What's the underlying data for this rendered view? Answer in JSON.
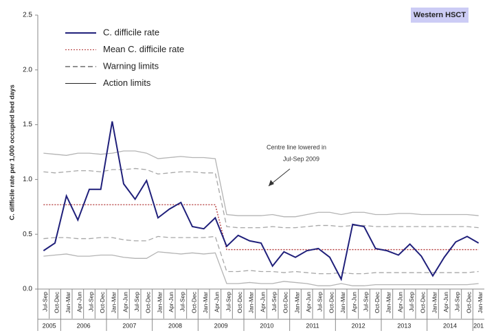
{
  "chart_data": {
    "type": "line",
    "badge": "Western HSCT",
    "ylabel": "C. difficile rate per 1,000 occupied bed days",
    "annotation": [
      "Centre line lowered in",
      "Jul-Sep 2009"
    ],
    "categories": [
      "Jul-Sep",
      "Oct-Dec",
      "Jan-Mar",
      "Apr-Jun",
      "Jul-Sep",
      "Oct-Dec",
      "Jan-Mar",
      "Apr-Jun",
      "Jul-Sep",
      "Oct-Dec",
      "Jan-Mar",
      "Apr-Jun",
      "Jul-Sep",
      "Oct-Dec",
      "Jan-Mar",
      "Apr-Jun",
      "Jul-Sep",
      "Oct-Dec",
      "Jan-Mar",
      "Apr-Jun",
      "Jul-Sep",
      "Oct-Dec",
      "Jan-Mar",
      "Apr-Jun",
      "Jul-Sep",
      "Oct-Dec",
      "Jan-Mar",
      "Apr-Jun",
      "Jul-Sep",
      "Oct-Dec",
      "Jan-Mar",
      "Apr-Jun",
      "Jul-Sep",
      "Oct-Dec",
      "Jan-Mar",
      "Apr-Jun",
      "Jul-Sep",
      "Oct-Dec",
      "Jan-Mar"
    ],
    "years": [
      "2005",
      "2005",
      "2006",
      "2006",
      "2006",
      "2006",
      "2007",
      "2007",
      "2007",
      "2007",
      "2008",
      "2008",
      "2008",
      "2008",
      "2009",
      "2009",
      "2009",
      "2009",
      "2010",
      "2010",
      "2010",
      "2010",
      "2011",
      "2011",
      "2011",
      "2011",
      "2012",
      "2012",
      "2012",
      "2012",
      "2013",
      "2013",
      "2013",
      "2013",
      "2014",
      "2014",
      "2014",
      "2014",
      "201"
    ],
    "ylim": [
      0,
      2.5
    ],
    "yticks": [
      {
        "value": 0,
        "label": "0.0"
      },
      {
        "value": 0.5,
        "label": "0.5"
      },
      {
        "value": 1,
        "label": "1.0"
      },
      {
        "value": 1.5,
        "label": "1.5"
      },
      {
        "value": 2,
        "label": "2.0"
      },
      {
        "value": 2.5,
        "label": "2.5"
      }
    ],
    "series": [
      {
        "name": "C. difficile rate",
        "color": "#1f1f7a",
        "style": "solid",
        "values": [
          0.35,
          0.42,
          0.85,
          0.63,
          0.91,
          0.91,
          1.53,
          0.96,
          0.82,
          0.99,
          0.65,
          0.73,
          0.79,
          0.57,
          0.55,
          0.65,
          0.39,
          0.49,
          0.44,
          0.42,
          0.21,
          0.34,
          0.29,
          0.35,
          0.37,
          0.29,
          0.09,
          0.59,
          0.57,
          0.37,
          0.35,
          0.31,
          0.41,
          0.3,
          0.12,
          0.29,
          0.43,
          0.48,
          0.42
        ]
      },
      {
        "name": "Mean C. difficile rate",
        "color": "#b03030",
        "style": "dotted",
        "values": [
          0.77,
          0.77,
          0.77,
          0.77,
          0.77,
          0.77,
          0.77,
          0.77,
          0.77,
          0.77,
          0.77,
          0.77,
          0.77,
          0.77,
          0.77,
          0.77,
          0.36,
          0.36,
          0.36,
          0.36,
          0.36,
          0.36,
          0.36,
          0.36,
          0.36,
          0.36,
          0.36,
          0.36,
          0.36,
          0.36,
          0.36,
          0.36,
          0.36,
          0.36,
          0.36,
          0.36,
          0.36,
          0.36,
          0.36
        ]
      },
      {
        "name": "Warning limits",
        "color": "#a6a6a6",
        "style": "dashed",
        "values": [
          1.07,
          1.06,
          1.07,
          1.08,
          1.08,
          1.07,
          1.09,
          1.09,
          1.1,
          1.09,
          1.05,
          1.06,
          1.07,
          1.07,
          1.06,
          1.06,
          0.57,
          0.56,
          0.56,
          0.56,
          0.57,
          0.56,
          0.56,
          0.57,
          0.58,
          0.58,
          0.57,
          0.58,
          0.58,
          0.57,
          0.57,
          0.57,
          0.57,
          0.57,
          0.57,
          0.57,
          0.57,
          0.57,
          0.56
        ],
        "lower": [
          0.46,
          0.47,
          0.47,
          0.46,
          0.46,
          0.47,
          0.47,
          0.45,
          0.44,
          0.44,
          0.48,
          0.47,
          0.47,
          0.47,
          0.47,
          0.48,
          0.16,
          0.16,
          0.17,
          0.16,
          0.16,
          0.15,
          0.16,
          0.15,
          0.14,
          0.14,
          0.15,
          0.14,
          0.14,
          0.15,
          0.15,
          0.15,
          0.15,
          0.15,
          0.15,
          0.15,
          0.15,
          0.15,
          0.16
        ]
      },
      {
        "name": "Action limits",
        "color": "#b3b3b3",
        "style": "solid",
        "values": [
          1.24,
          1.23,
          1.22,
          1.24,
          1.24,
          1.23,
          1.24,
          1.26,
          1.26,
          1.24,
          1.19,
          1.2,
          1.21,
          1.2,
          1.2,
          1.19,
          0.68,
          0.67,
          0.67,
          0.67,
          0.68,
          0.66,
          0.66,
          0.68,
          0.7,
          0.7,
          0.68,
          0.7,
          0.7,
          0.68,
          0.68,
          0.69,
          0.69,
          0.68,
          0.68,
          0.68,
          0.68,
          0.68,
          0.67
        ],
        "lower": [
          0.3,
          0.31,
          0.32,
          0.3,
          0.3,
          0.31,
          0.31,
          0.29,
          0.28,
          0.28,
          0.34,
          0.33,
          0.32,
          0.33,
          0.32,
          0.33,
          0.05,
          0.05,
          0.06,
          0.05,
          0.05,
          0.07,
          0.06,
          0.05,
          0.03,
          0.03,
          0.05,
          0.03,
          0.03,
          0.04,
          0.04,
          0.04,
          0.04,
          0.04,
          0.04,
          0.04,
          0.04,
          0.04,
          0.05
        ]
      }
    ]
  }
}
